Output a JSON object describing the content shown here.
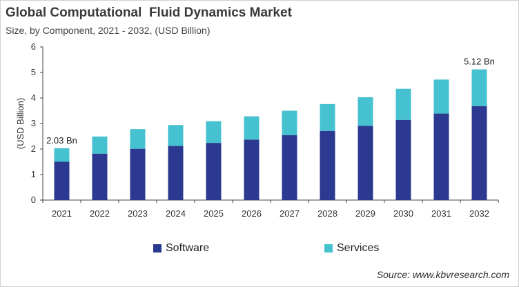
{
  "title": "Global Computational  Fluid Dynamics Market",
  "subtitle": "Size, by Component, 2021 - 2032, (USD Billion)",
  "source": "Source: www.kbvresearch.com",
  "chart_data": {
    "type": "bar",
    "stacked": true,
    "categories": [
      "2021",
      "2022",
      "2023",
      "2024",
      "2025",
      "2026",
      "2027",
      "2028",
      "2029",
      "2030",
      "2031",
      "2032"
    ],
    "series": [
      {
        "name": "Software",
        "color": "#2b3990",
        "values": [
          1.5,
          1.82,
          2.01,
          2.12,
          2.24,
          2.37,
          2.54,
          2.71,
          2.91,
          3.14,
          3.39,
          3.68
        ]
      },
      {
        "name": "Services",
        "color": "#45c1cf",
        "values": [
          0.53,
          0.67,
          0.77,
          0.82,
          0.85,
          0.91,
          0.96,
          1.05,
          1.12,
          1.22,
          1.33,
          1.44
        ]
      }
    ],
    "data_labels": [
      {
        "category": "2021",
        "text": "2.03 Bn"
      },
      {
        "category": "2032",
        "text": "5.12 Bn"
      }
    ],
    "ylabel": "(USD Billion)",
    "xlabel": "",
    "ylim": [
      0,
      6
    ],
    "yticks": [
      "0",
      "1",
      "2",
      "3",
      "4",
      "5",
      "6"
    ],
    "grid": false,
    "legend": "bottom"
  }
}
